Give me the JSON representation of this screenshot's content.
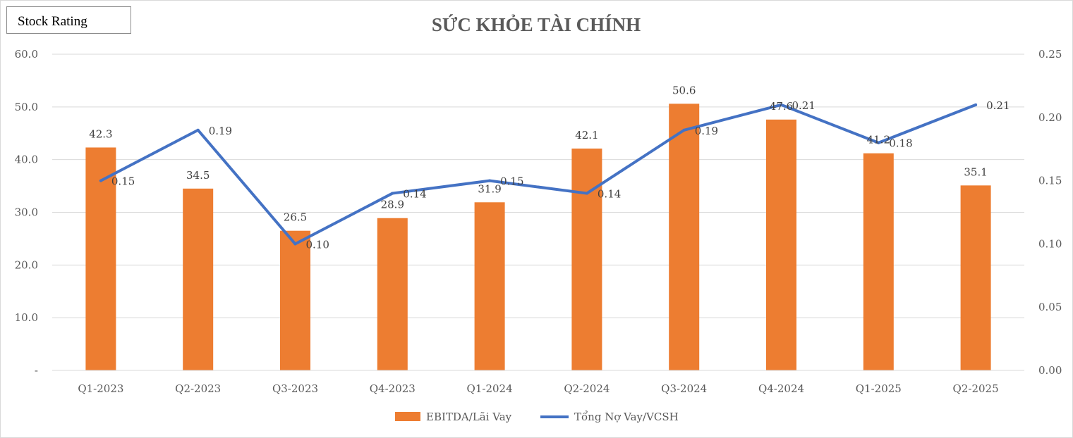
{
  "badge": {
    "label": "Stock Rating"
  },
  "chart_data": {
    "type": "bar+line",
    "title": "SỨC KHỎE TÀI CHÍNH",
    "categories": [
      "Q1-2023",
      "Q2-2023",
      "Q3-2023",
      "Q4-2023",
      "Q1-2024",
      "Q2-2024",
      "Q3-2024",
      "Q4-2024",
      "Q1-2025",
      "Q2-2025"
    ],
    "series": [
      {
        "name": "EBITDA/Lãi Vay",
        "type": "bar",
        "axis": "left",
        "color": "#ED7D31",
        "values": [
          42.3,
          34.5,
          26.5,
          28.9,
          31.9,
          42.1,
          50.6,
          47.6,
          41.2,
          35.1
        ],
        "labels": [
          "42.3",
          "34.5",
          "26.5",
          "28.9",
          "31.9",
          "42.1",
          "50.6",
          "47.6",
          "41.2",
          "35.1"
        ]
      },
      {
        "name": "Tổng Nợ Vay/VCSH",
        "type": "line",
        "axis": "right",
        "color": "#4472C4",
        "values": [
          0.15,
          0.19,
          0.1,
          0.14,
          0.15,
          0.14,
          0.19,
          0.21,
          0.18,
          0.21
        ],
        "labels": [
          "0.15",
          "0.19",
          "0.10",
          "0.14",
          "0.15",
          "0.14",
          "0.19",
          "0.21",
          "0.18",
          "0.21"
        ]
      }
    ],
    "y_left": {
      "min": 0,
      "max": 60,
      "ticks": [
        "-",
        "10.0",
        "20.0",
        "30.0",
        "40.0",
        "50.0",
        "60.0"
      ]
    },
    "y_right": {
      "min": 0,
      "max": 0.25,
      "ticks": [
        "0.00",
        "0.05",
        "0.10",
        "0.15",
        "0.20",
        "0.25"
      ]
    },
    "grid": true,
    "legend": "bottom"
  }
}
